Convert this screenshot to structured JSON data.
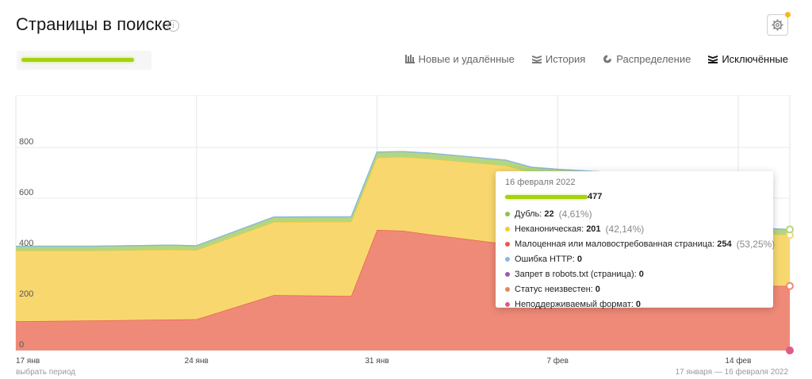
{
  "page": {
    "title": "Страницы в поиске"
  },
  "tabs": [
    {
      "label": "Новые и удалённые",
      "icon": "bar-grid-icon",
      "active": false
    },
    {
      "label": "История",
      "icon": "stacked-layers-icon",
      "active": false
    },
    {
      "label": "Распределение",
      "icon": "pie-chart-icon",
      "active": false
    },
    {
      "label": "Исключённые",
      "icon": "stacked-layers-icon",
      "active": true
    }
  ],
  "tooltip": {
    "date": "16 февраля 2022",
    "total": "477",
    "rows": [
      {
        "label": "Дубль:",
        "value": "22",
        "pct": "(4,61%)",
        "color": "#8bc34a"
      },
      {
        "label": "Неканоническая:",
        "value": "201",
        "pct": "(42,14%)",
        "color": "#f5cc35"
      },
      {
        "label": "Малоценная или маловостребованная страница:",
        "value": "254",
        "pct": "(53,25%)",
        "color": "#e8594a"
      },
      {
        "label": "Ошибка HTTP:",
        "value": "0",
        "pct": "",
        "color": "#8ab8e6"
      },
      {
        "label": "Запрет в robots.txt (страница):",
        "value": "0",
        "pct": "",
        "color": "#9b59b6"
      },
      {
        "label": "Статус неизвестен:",
        "value": "0",
        "pct": "",
        "color": "#e0895a"
      },
      {
        "label": "Неподдерживаемый формат:",
        "value": "0",
        "pct": "",
        "color": "#e05b8a"
      }
    ]
  },
  "footer": {
    "left": "выбрать период",
    "right": "17 января — 16 февраля 2022"
  },
  "chart_data": {
    "type": "area",
    "stacked": true,
    "x": [
      "17 янв",
      "20 янв",
      "23 янв",
      "24 янв",
      "27 янв",
      "30 янв",
      "31 янв",
      "1 фев",
      "2 фев",
      "5 фев",
      "6 фев",
      "7 фев",
      "9 фев",
      "12 фев",
      "13 фев",
      "16 фев"
    ],
    "x_ticks": [
      "17 янв",
      "24 янв",
      "31 янв",
      "7 фев",
      "14 фев"
    ],
    "y_ticks": [
      0,
      200,
      400,
      600,
      800
    ],
    "ylim": [
      0,
      1000
    ],
    "grid": true,
    "series": [
      {
        "name": "Малоценная или маловостребованная страница",
        "color": "#ef8a78",
        "values": [
          115,
          118,
          122,
          123,
          218,
          215,
          475,
          472,
          458,
          420,
          395,
          390,
          380,
          370,
          258,
          254
        ]
      },
      {
        "name": "Неканоническая",
        "color": "#f8d86e",
        "values": [
          278,
          275,
          275,
          272,
          288,
          292,
          285,
          290,
          298,
          308,
          305,
          302,
          300,
          298,
          210,
          201
        ]
      },
      {
        "name": "Дубль",
        "color": "#b5d680",
        "values": [
          18,
          18,
          18,
          18,
          20,
          20,
          22,
          22,
          22,
          22,
          22,
          22,
          22,
          22,
          22,
          22
        ]
      },
      {
        "name": "Ошибка HTTP",
        "color": "#8ab8e6",
        "values": [
          0,
          0,
          0,
          0,
          0,
          0,
          0,
          0,
          0,
          0,
          0,
          0,
          0,
          0,
          0,
          0
        ]
      }
    ]
  }
}
